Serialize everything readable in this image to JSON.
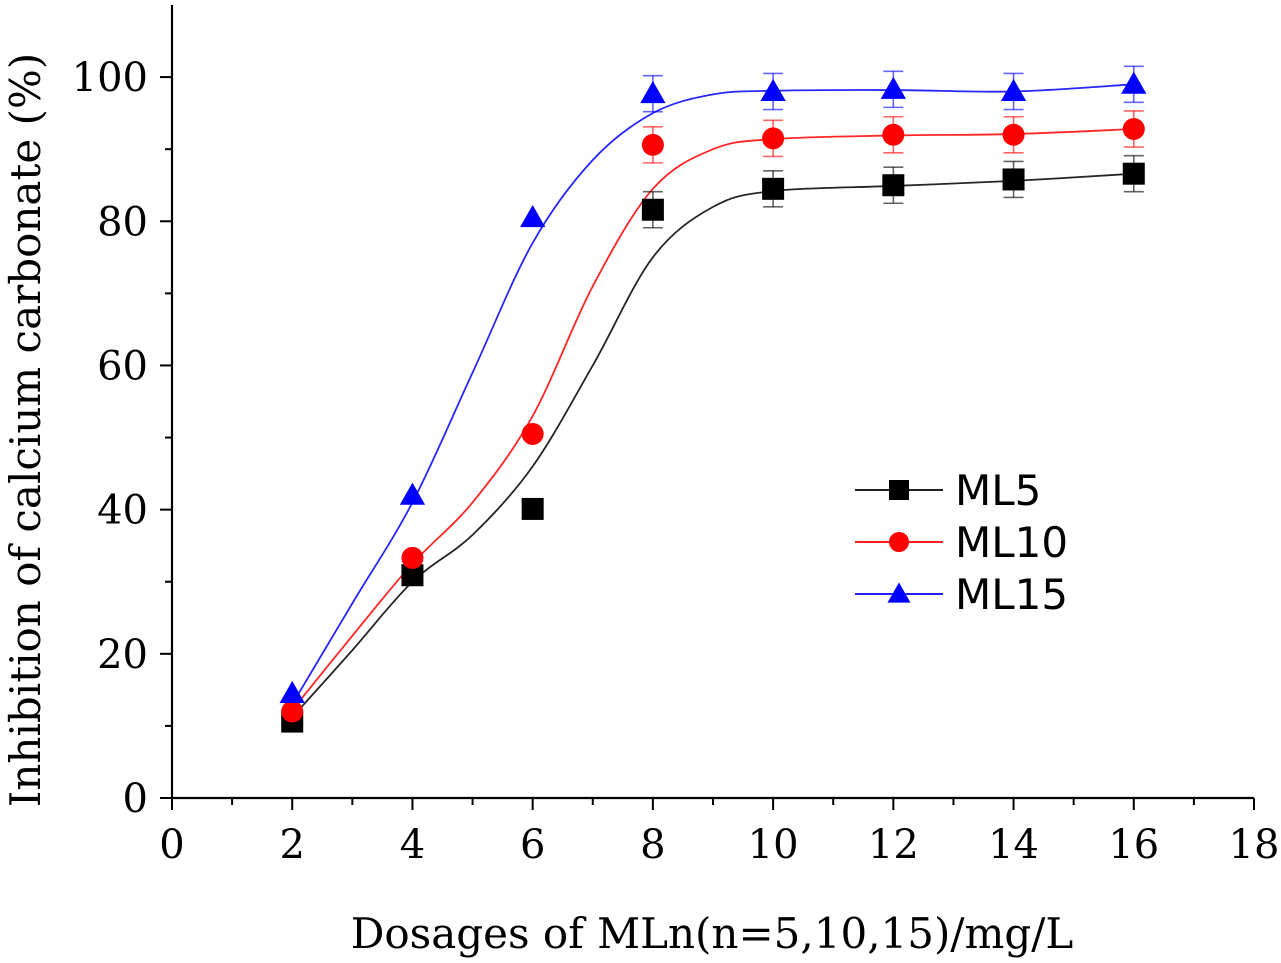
{
  "chart_data": {
    "type": "scatter",
    "title": "",
    "xlabel": "Dosages of MLn(n=5,10,15)/mg/L",
    "ylabel": "Inhibition of calcium carbonate (%)",
    "xlim": [
      0,
      18
    ],
    "ylim": [
      0,
      110
    ],
    "xticks": [
      "0",
      "2",
      "4",
      "6",
      "8",
      "10",
      "12",
      "14",
      "16",
      "18"
    ],
    "yticks": [
      "0",
      "20",
      "40",
      "60",
      "80",
      "100"
    ],
    "legend_position": "center-right",
    "series": [
      {
        "name": "ML5",
        "color": "#000000",
        "marker": "square",
        "x": [
          2,
          4,
          6,
          8,
          10,
          12,
          14,
          16
        ],
        "values": [
          10.6,
          30.9,
          40.1,
          81.6,
          84.5,
          85.0,
          85.8,
          86.6
        ],
        "errors": [
          0,
          0,
          0,
          2.5,
          2.5,
          2.5,
          2.5,
          2.5
        ],
        "fit": [
          [
            2,
            11.2
          ],
          [
            3,
            20.5
          ],
          [
            4,
            30.0
          ],
          [
            5,
            36.5
          ],
          [
            6,
            46.0
          ],
          [
            7,
            60.0
          ],
          [
            8,
            75.0
          ],
          [
            9,
            82.0
          ],
          [
            10,
            84.2
          ],
          [
            12,
            84.9
          ],
          [
            14,
            85.6
          ],
          [
            16,
            86.6
          ]
        ]
      },
      {
        "name": "ML10",
        "color": "#ff0000",
        "marker": "circle",
        "x": [
          2,
          4,
          6,
          8,
          10,
          12,
          14,
          16
        ],
        "values": [
          12.0,
          33.3,
          50.5,
          90.6,
          91.5,
          92.0,
          92.0,
          92.8
        ],
        "errors": [
          0,
          0,
          0,
          2.5,
          2.5,
          2.5,
          2.5,
          2.5
        ],
        "fit": [
          [
            2,
            12.2
          ],
          [
            3,
            22.5
          ],
          [
            4,
            32.5
          ],
          [
            5,
            41.0
          ],
          [
            6,
            53.0
          ],
          [
            7,
            71.0
          ],
          [
            8,
            84.5
          ],
          [
            9,
            90.0
          ],
          [
            10,
            91.4
          ],
          [
            12,
            91.9
          ],
          [
            14,
            92.1
          ],
          [
            16,
            92.8
          ]
        ]
      },
      {
        "name": "ML15",
        "color": "#0000ff",
        "marker": "triangle",
        "x": [
          2,
          4,
          6,
          8,
          10,
          12,
          14,
          16
        ],
        "values": [
          14.5,
          42.0,
          80.5,
          97.7,
          98.0,
          98.3,
          98.0,
          99.0
        ],
        "errors": [
          0,
          0,
          0,
          2.5,
          2.5,
          2.5,
          2.5,
          2.5
        ],
        "fit": [
          [
            2,
            13.0
          ],
          [
            3,
            27.0
          ],
          [
            4,
            41.0
          ],
          [
            5,
            59.0
          ],
          [
            6,
            77.0
          ],
          [
            7,
            88.5
          ],
          [
            8,
            95.0
          ],
          [
            9,
            97.6
          ],
          [
            10,
            98.1
          ],
          [
            12,
            98.2
          ],
          [
            14,
            98.0
          ],
          [
            16,
            99.0
          ]
        ]
      }
    ]
  }
}
